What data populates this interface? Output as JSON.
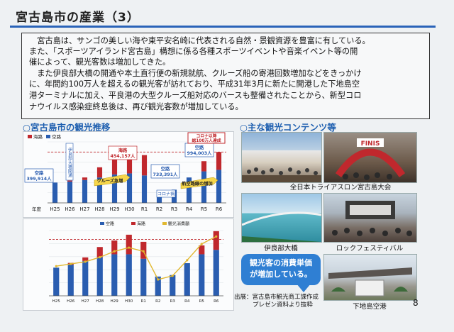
{
  "title": "宮古島市の産業（3）",
  "paragraphs": [
    "　宮古島は、サンゴの美しい海や東平安名崎に代表される自然・景観資源を豊富に有している。",
    "また、「スポーツアイランド宮古島」構想に係る各種スポーツイベントや音楽イベント等の開",
    "催によって、観光客数は増加してきた。",
    "　また伊良部大橋の開通や本土直行便の新規就航、クルーズ船の寄港回数増加などをきっかけ",
    "に、年間約100万人を超えるの観光客が訪れており、平成31年3月に新たに開港した下地島空",
    "港ターミナルに加え、平良港の大型クルーズ船対応のバースも整備されたことから、新型コロ",
    "ナウイルス感染症終息後は、再び観光客数が増加している。"
  ],
  "sections": {
    "trend_head": "○宮古島市の観光推移",
    "contents_head": "○主な観光コンテンツ等"
  },
  "chart_data": [
    {
      "type": "bar",
      "categories": [
        "H25",
        "H26",
        "H27",
        "H28",
        "H29",
        "H30",
        "R1",
        "R2",
        "R3",
        "R4",
        "R5",
        "R6"
      ],
      "series": [
        {
          "name": "空路",
          "values": [
            400000,
            420000,
            450000,
            500000,
            560000,
            580000,
            540000,
            240000,
            260000,
            500000,
            620000,
            650000
          ],
          "color": "#2a5db0"
        },
        {
          "name": "海路",
          "values": [
            0,
            20000,
            50000,
            200000,
            300000,
            500000,
            400000,
            0,
            0,
            0,
            200000,
            350000
          ],
          "color": "#c0282d"
        }
      ],
      "xlabel": "年度",
      "ylim": [
        0,
        1200000
      ],
      "reference_line": 1000000,
      "annotations": {
        "kuko_label": "空路",
        "kuko_value": "399,914人",
        "kaiso_label": "海路",
        "kaiso_value": "454,157人",
        "kuko2_label": "空路",
        "kuko2_value": "733,391人",
        "corona_label": "コロナ以降",
        "corona_label2": "総100万人達成",
        "kuko3_label": "空路",
        "kuko3_value": "994,003人",
        "bridge_label": "伊良部大橋開通",
        "cruise_label": "クルーズ急増",
        "corona_dip": "コロナ禍",
        "airline_label": "航空路線の増加"
      },
      "legend": [
        "海路",
        "空路"
      ],
      "legend_placement": "top-left"
    },
    {
      "type": "bar",
      "categories": [
        "H25",
        "H26",
        "H27",
        "H28",
        "H29",
        "H30",
        "R1",
        "R2",
        "R3",
        "R4",
        "R5",
        "R6"
      ],
      "series": [
        {
          "name": "空路",
          "values": [
            380,
            420,
            470,
            520,
            560,
            560,
            500,
            260,
            280,
            440,
            560,
            620
          ],
          "color": "#2a5db0"
        },
        {
          "name": "海路",
          "values": [
            0,
            40,
            80,
            230,
            310,
            440,
            380,
            0,
            0,
            0,
            200,
            420
          ],
          "color": "#c0282d"
        },
        {
          "name": "観光消費額",
          "values": [
            400,
            430,
            460,
            520,
            600,
            650,
            600,
            220,
            270,
            480,
            700,
            800
          ],
          "color": "#e1b830"
        }
      ],
      "legend": [
        "空路",
        "海路",
        "観光消費額"
      ],
      "legend_placement": "top-center"
    }
  ],
  "photos": [
    {
      "name": "triathlon-photo",
      "label": "全日本トライアスロン宮古島大会",
      "banner": "FINIS"
    },
    {
      "name": "irabu-bridge-photo",
      "label": "伊良部大橋"
    },
    {
      "name": "rock-festival-photo",
      "label": "ロックフェスティバル"
    },
    {
      "name": "shimojishima-airport-photo",
      "label": "下地島空港"
    }
  ],
  "callout": [
    "観光客の消費単価",
    "が増加している。"
  ],
  "source": [
    "出展：宮古島市観光商工課作成",
    "プレゼン資料より抜粋"
  ],
  "page_number": "8",
  "colors": {
    "air": "#2a5db0",
    "sea": "#c0282d",
    "spending": "#e1b830",
    "accent": "#1e5fb0"
  }
}
